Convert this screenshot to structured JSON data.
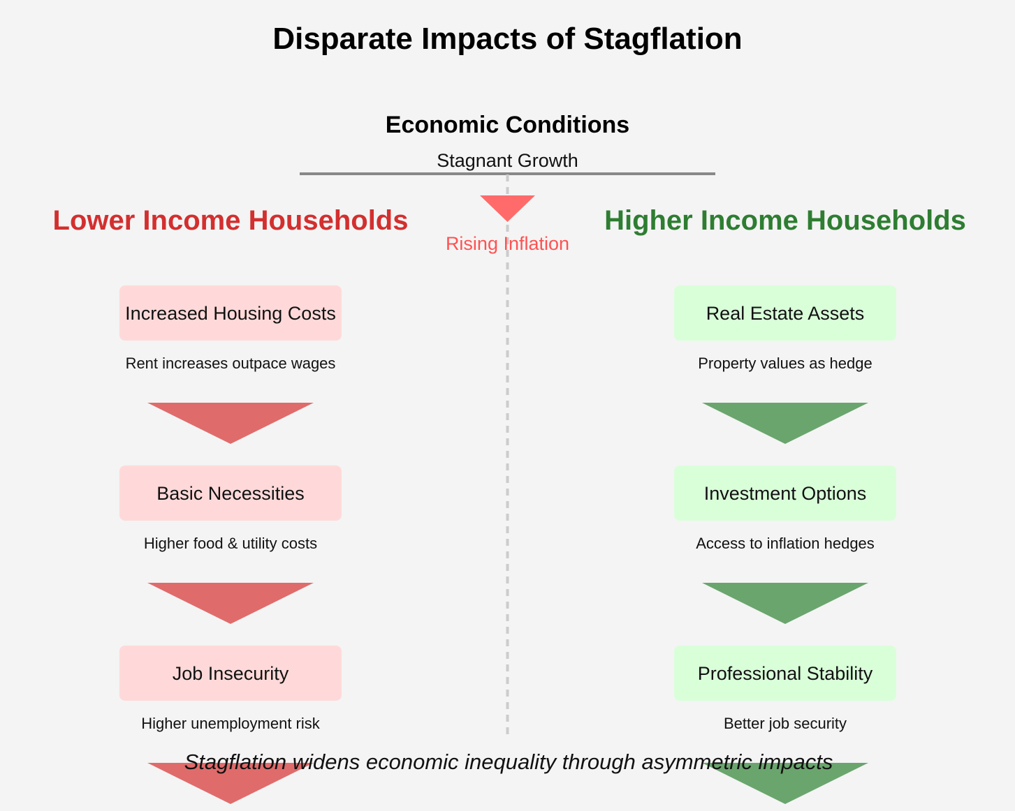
{
  "title": "Disparate Impacts of Stagflation",
  "conditions": {
    "heading": "Economic Conditions",
    "growth_label": "Stagnant Growth",
    "inflation_label": "Rising Inflation"
  },
  "lower": {
    "title": "Lower Income Households",
    "items": [
      {
        "label": "Increased Housing Costs",
        "desc": "Rent increases outpace wages"
      },
      {
        "label": "Basic Necessities",
        "desc": "Higher food & utility costs"
      },
      {
        "label": "Job Insecurity",
        "desc": "Higher unemployment risk"
      }
    ]
  },
  "higher": {
    "title": "Higher Income Households",
    "items": [
      {
        "label": "Real Estate Assets",
        "desc": "Property values as hedge"
      },
      {
        "label": "Investment Options",
        "desc": "Access to inflation hedges"
      },
      {
        "label": "Professional Stability",
        "desc": "Better job security"
      }
    ]
  },
  "footer": "Stagflation widens economic inequality through asymmetric impacts",
  "colors": {
    "background": "#f4f4f4",
    "lower_text": "#d32f2f",
    "lower_box": "#ffd9d9",
    "lower_arrow": "#e06b6b",
    "higher_text": "#2e7d32",
    "higher_box": "#d9ffd9",
    "higher_arrow": "#6aa56d",
    "inflation": "#ff6b6b"
  }
}
